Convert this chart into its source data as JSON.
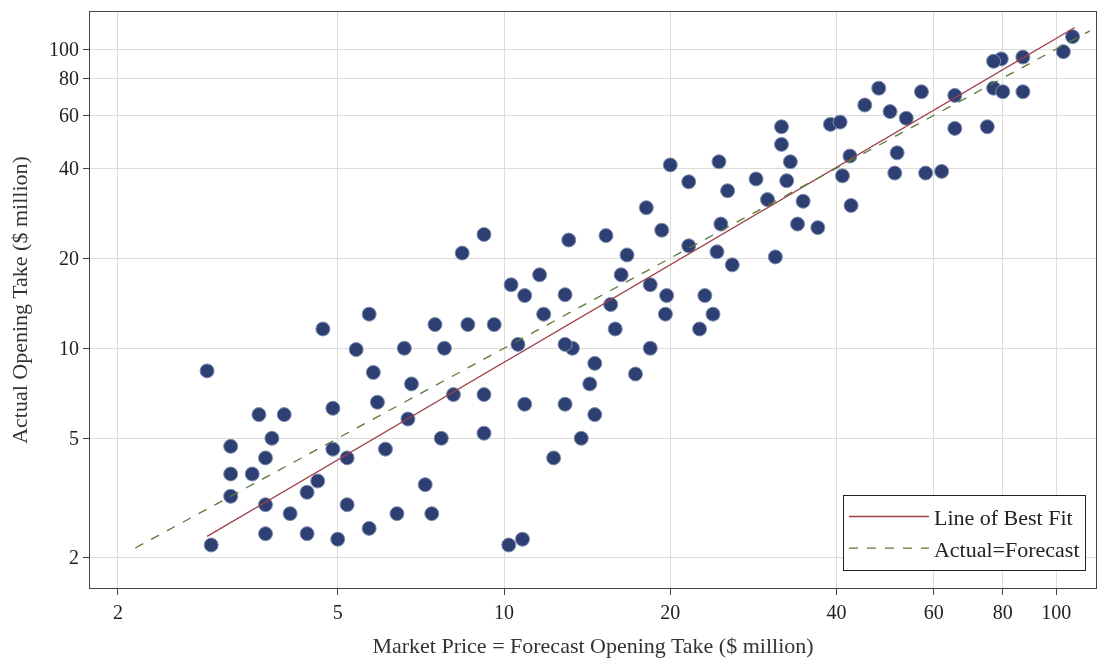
{
  "chart_data": {
    "type": "scatter",
    "xlabel": "Market Price = Forecast Opening Take ($ million)",
    "ylabel": "Actual Opening Take ($ million)",
    "log": "xy",
    "xlim": [
      1.78,
      118
    ],
    "ylim": [
      1.58,
      133
    ],
    "xticks": [
      2,
      5,
      10,
      20,
      40,
      60,
      80,
      100
    ],
    "yticks": [
      2,
      5,
      10,
      20,
      40,
      60,
      80,
      100
    ],
    "grid": true,
    "legend": "bottom right",
    "series": [
      {
        "marker": "circle",
        "color": "#2e3f73",
        "x": [
          2.9,
          2.95,
          3.2,
          3.2,
          3.2,
          3.5,
          3.6,
          3.7,
          3.7,
          3.7,
          3.8,
          4.0,
          4.1,
          4.4,
          4.7,
          4.6,
          4.9,
          5.0,
          5.4,
          5.7,
          5.2,
          5.7,
          5.8,
          6.1,
          6.4,
          6.6,
          6.7,
          7.2,
          7.4,
          7.7,
          8.1,
          8.4,
          9.2,
          8.6,
          9.2,
          10.2,
          10.8,
          10.3,
          10.6,
          11.6,
          12.3,
          12.9,
          12.9,
          13.3,
          13.1,
          14.3,
          13.8,
          14.6,
          15.3,
          15.6,
          15.9,
          16.3,
          18.1,
          18.4,
          18.4,
          20,
          19.3,
          19.6,
          21.6,
          21.6,
          19.7,
          23.1,
          22.6,
          24.5,
          24.7,
          24.3,
          25.9,
          25.4,
          23.9,
          28.6,
          31,
          30,
          31.8,
          31.8,
          33,
          32.5,
          34.8,
          34,
          37,
          41,
          42.3,
          42.5,
          39,
          40.6,
          45,
          47.7,
          50,
          53.5,
          57,
          51,
          58,
          65.5,
          65.5,
          75,
          77,
          79.5,
          80,
          87,
          87,
          103,
          107,
          62,
          51.5,
          77,
          7.8,
          7.5,
          9.6,
          10.9,
          11.8,
          9.2,
          6.8,
          5.9,
          5.2,
          4.9,
          4.4,
          16.7,
          17.3,
          14.6,
          10.9,
          12.9
        ],
        "values": [
          8.4,
          2.2,
          4.7,
          3.8,
          3.2,
          3.8,
          6.0,
          3.0,
          2.4,
          4.3,
          5.0,
          6.0,
          2.8,
          2.4,
          11.6,
          3.6,
          6.3,
          2.3,
          9.9,
          13.0,
          3.0,
          2.5,
          8.3,
          4.6,
          2.8,
          10,
          5.8,
          3.5,
          2.8,
          5.0,
          7.0,
          20.8,
          24,
          12.0,
          7.0,
          2.2,
          2.3,
          16.3,
          10.3,
          17.6,
          4.3,
          15.1,
          6.5,
          10,
          23,
          7.6,
          5.0,
          6.0,
          23.8,
          14,
          11.6,
          17.6,
          29.5,
          10,
          16.3,
          41,
          24.8,
          13,
          36,
          22,
          15,
          15,
          11.6,
          42,
          26,
          21,
          19,
          33.6,
          13,
          36.8,
          20.2,
          31.4,
          55,
          48,
          42,
          36.3,
          31,
          26,
          25.3,
          37.7,
          43.9,
          30,
          56,
          57,
          65,
          74,
          61.8,
          58.7,
          72,
          38.5,
          38.5,
          54.3,
          70,
          55,
          74,
          92.7,
          72,
          72,
          94,
          98,
          110,
          39,
          45,
          91,
          10,
          12,
          12,
          15,
          13,
          5.2,
          7.6,
          6.6,
          4.3,
          4.6,
          3.3,
          20.5,
          8.2,
          8.9,
          6.5,
          10.3
        ]
      },
      {
        "type": "line",
        "name": "Line of Best Fit",
        "color": "#a0404a",
        "line_style": "solid",
        "marker": "none",
        "x": [
          2.9,
          108
        ],
        "values": [
          2.35,
          118
        ]
      },
      {
        "type": "line",
        "name": "Actual=Forecast",
        "color": "#5a7a3a",
        "line_style": "dashed",
        "marker": "none",
        "x": [
          2.15,
          115
        ],
        "values": [
          2.15,
          115
        ]
      }
    ]
  }
}
